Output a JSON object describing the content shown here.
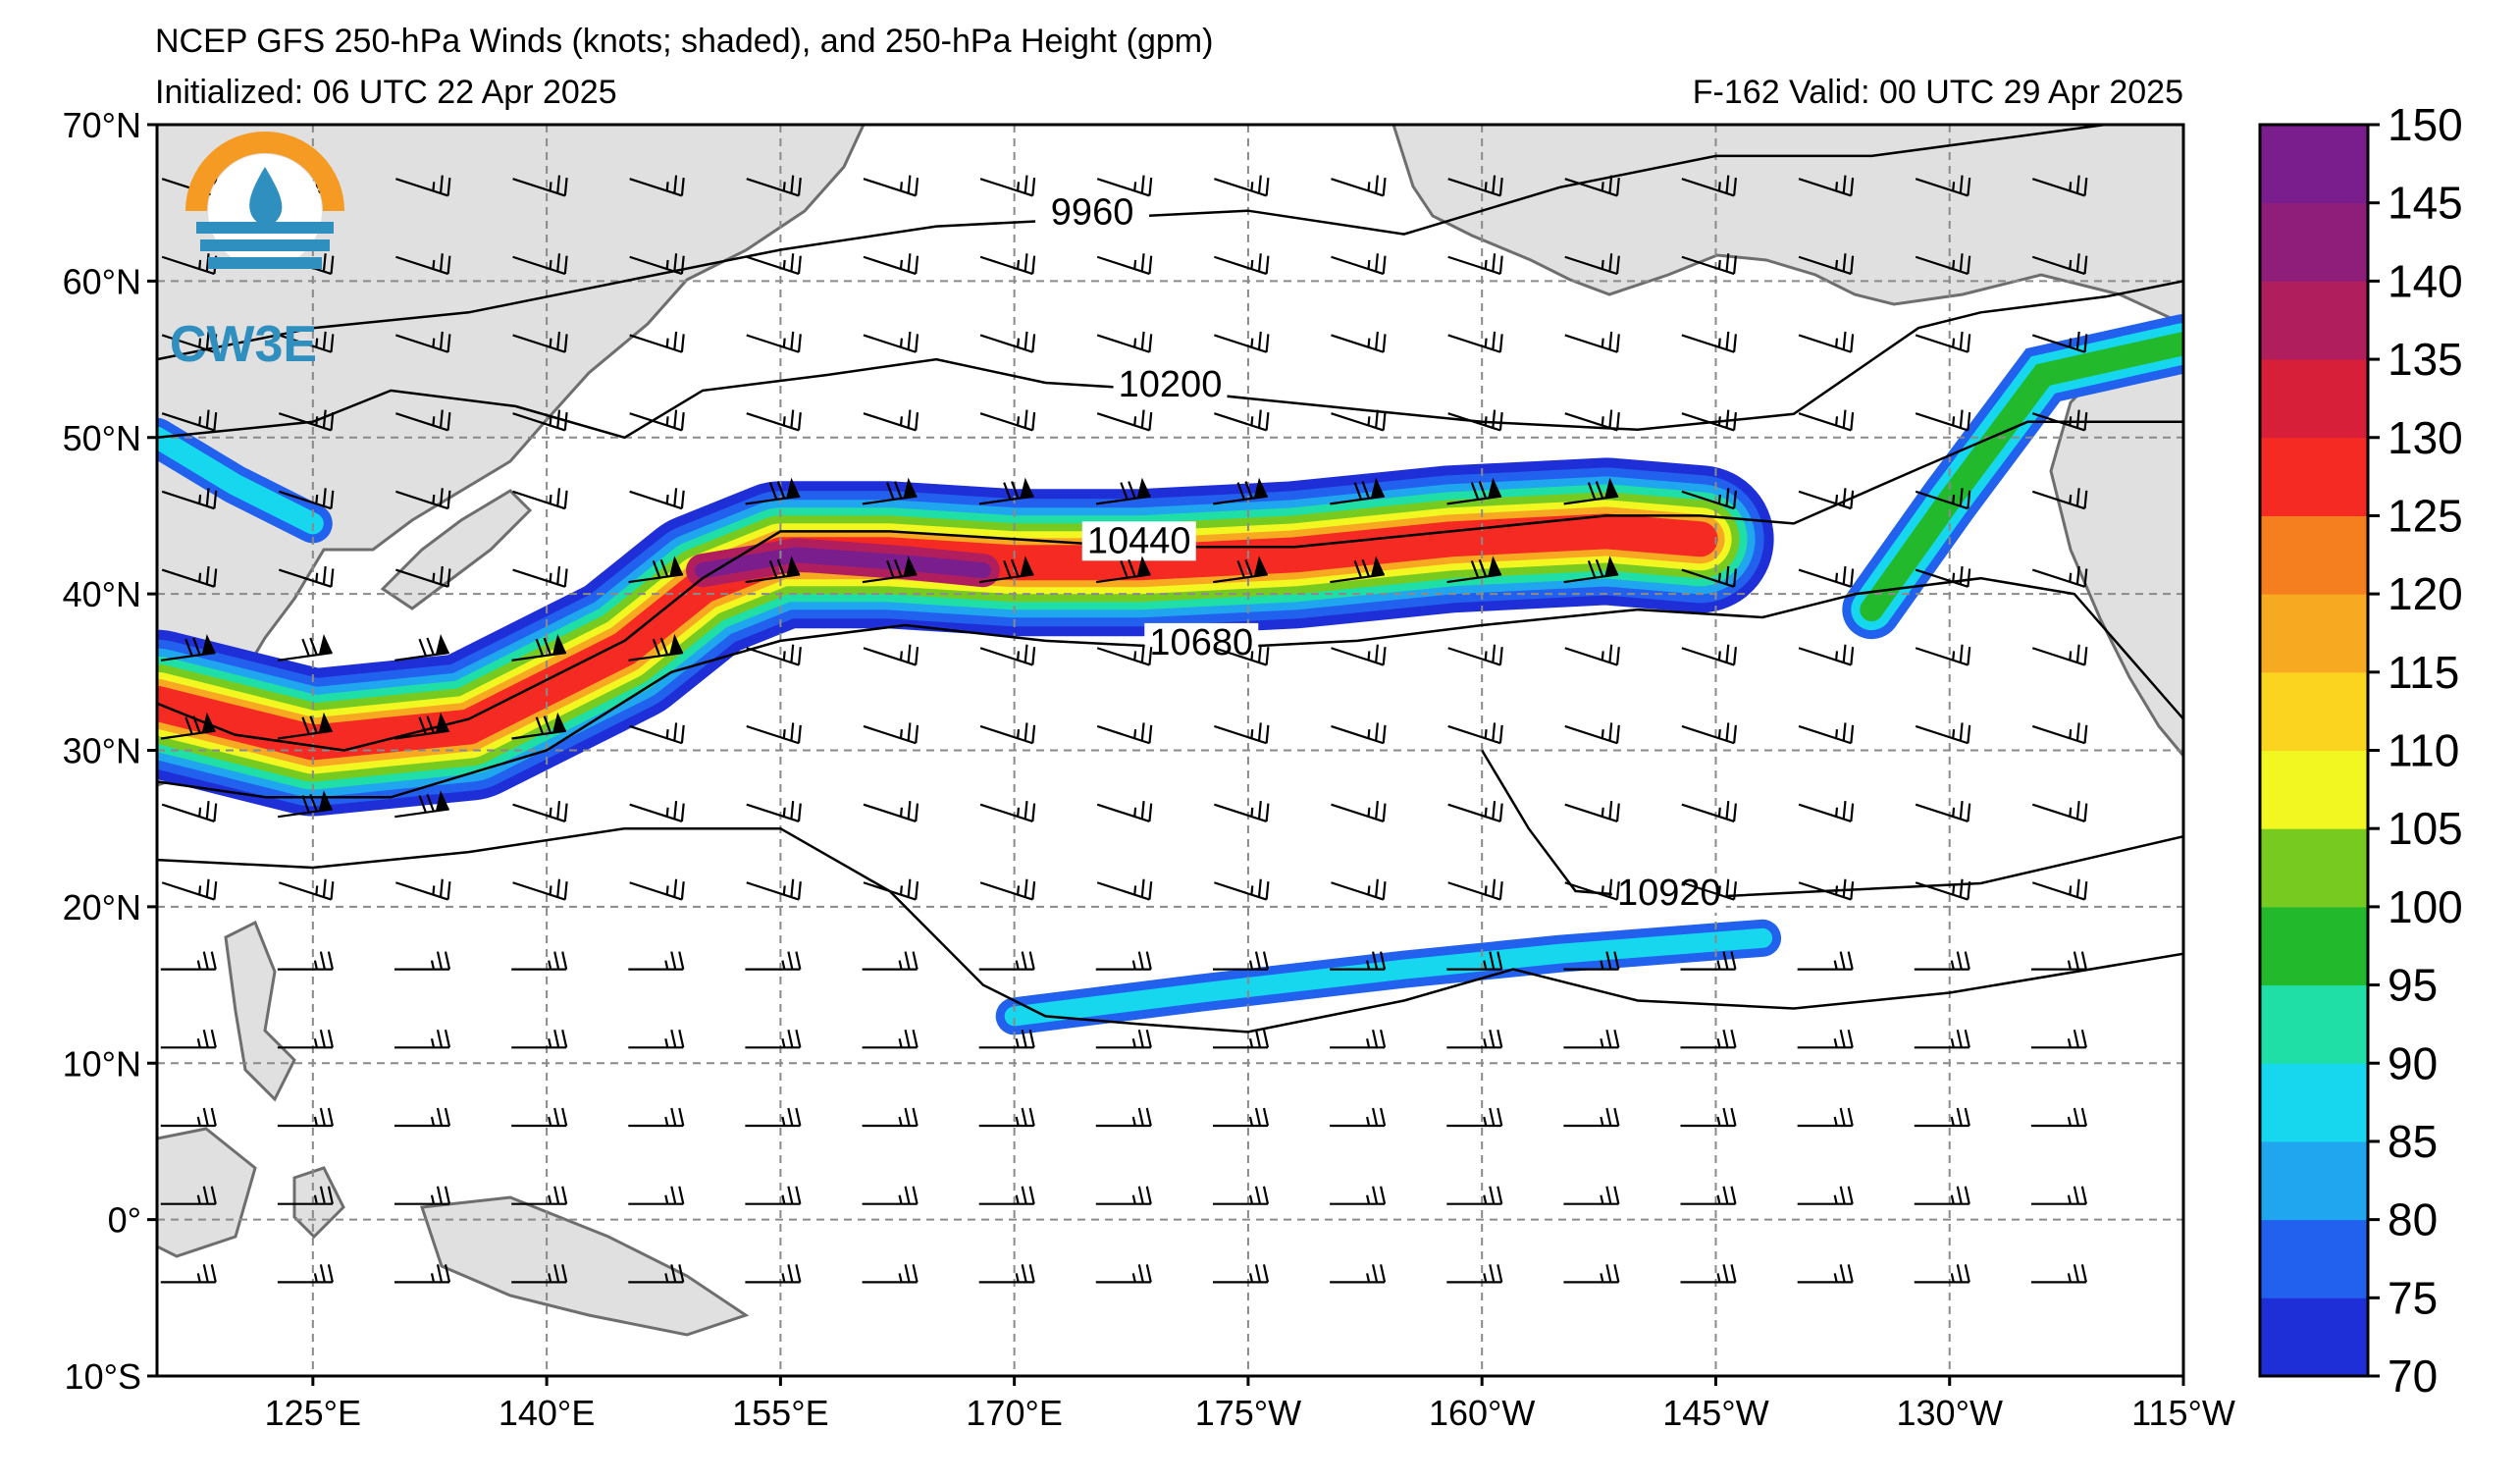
{
  "header": {
    "title": "NCEP GFS 250-hPa Winds (knots; shaded), and 250-hPa Height (gpm)",
    "initialized": "Initialized: 06 UTC 22 Apr 2025",
    "valid": "F-162  Valid: 00 UTC 29 Apr 2025"
  },
  "logo": {
    "text": "CW3E",
    "colors": {
      "ring": "#f59a23",
      "blue": "#2f8fbf"
    }
  },
  "map": {
    "projection": "equirectangular",
    "lon_range_east": [
      115,
      245
    ],
    "lat_range": [
      -10,
      70
    ],
    "lat_ticks": [
      {
        "lat": 70,
        "label": "70°N"
      },
      {
        "lat": 60,
        "label": "60°N"
      },
      {
        "lat": 50,
        "label": "50°N"
      },
      {
        "lat": 40,
        "label": "40°N"
      },
      {
        "lat": 30,
        "label": "30°N"
      },
      {
        "lat": 20,
        "label": "20°N"
      },
      {
        "lat": 10,
        "label": "10°N"
      },
      {
        "lat": 0,
        "label": "0°"
      },
      {
        "lat": -10,
        "label": "10°S"
      }
    ],
    "lon_ticks": [
      {
        "lon": 125,
        "label": "125°E"
      },
      {
        "lon": 140,
        "label": "140°E"
      },
      {
        "lon": 155,
        "label": "155°E"
      },
      {
        "lon": 170,
        "label": "170°E"
      },
      {
        "lon": 185,
        "label": "175°W"
      },
      {
        "lon": 200,
        "label": "160°W"
      },
      {
        "lon": 215,
        "label": "145°W"
      },
      {
        "lon": 230,
        "label": "130°W"
      },
      {
        "lon": 245,
        "label": "115°W"
      }
    ],
    "gridlines": "dashed",
    "land_color": "#e0e0e0",
    "height_contours": [
      {
        "label": "9960",
        "points": [
          [
            115,
            55
          ],
          [
            125,
            57
          ],
          [
            135,
            58
          ],
          [
            145,
            60
          ],
          [
            155,
            62
          ],
          [
            165,
            63.5
          ],
          [
            175,
            64
          ],
          [
            185,
            64.5
          ],
          [
            195,
            63
          ],
          [
            205,
            66
          ],
          [
            215,
            68
          ],
          [
            225,
            68
          ],
          [
            240,
            70
          ]
        ]
      },
      {
        "label": "10200",
        "points": [
          [
            115,
            50
          ],
          [
            125,
            51
          ],
          [
            130,
            53
          ],
          [
            138,
            52
          ],
          [
            145,
            50
          ],
          [
            150,
            53
          ],
          [
            158,
            54
          ],
          [
            165,
            55
          ],
          [
            172,
            53.5
          ],
          [
            180,
            53
          ],
          [
            190,
            52
          ],
          [
            200,
            51
          ],
          [
            210,
            50.5
          ],
          [
            220,
            51.5
          ],
          [
            228,
            57
          ],
          [
            232,
            58
          ],
          [
            240,
            59
          ],
          [
            245,
            60
          ]
        ]
      },
      {
        "label": "10440",
        "points": [
          [
            115,
            33
          ],
          [
            120,
            31
          ],
          [
            127,
            30
          ],
          [
            135,
            32
          ],
          [
            145,
            37
          ],
          [
            150,
            41
          ],
          [
            155,
            44
          ],
          [
            162,
            44
          ],
          [
            170,
            43.5
          ],
          [
            178,
            43
          ],
          [
            188,
            43
          ],
          [
            198,
            44
          ],
          [
            208,
            45
          ],
          [
            214,
            45
          ],
          [
            220,
            44.5
          ],
          [
            228,
            48
          ],
          [
            235,
            51
          ],
          [
            245,
            51
          ]
        ]
      },
      {
        "label": "10680",
        "points": [
          [
            115,
            28
          ],
          [
            122,
            27
          ],
          [
            130,
            27
          ],
          [
            140,
            30
          ],
          [
            148,
            35
          ],
          [
            155,
            37
          ],
          [
            163,
            38
          ],
          [
            172,
            37
          ],
          [
            182,
            36.5
          ],
          [
            192,
            37
          ],
          [
            200,
            38
          ],
          [
            210,
            39
          ],
          [
            218,
            38.5
          ],
          [
            224,
            40
          ],
          [
            232,
            41
          ],
          [
            238,
            40
          ],
          [
            245,
            32
          ]
        ]
      },
      {
        "label": "",
        "points": [
          [
            115,
            23
          ],
          [
            125,
            22.5
          ],
          [
            135,
            23.5
          ],
          [
            145,
            25
          ],
          [
            155,
            25
          ],
          [
            162,
            21
          ],
          [
            168,
            15
          ],
          [
            172,
            13
          ],
          [
            178,
            12.5
          ],
          [
            185,
            12
          ],
          [
            195,
            14
          ],
          [
            202,
            16
          ],
          [
            210,
            14
          ],
          [
            220,
            13.5
          ],
          [
            230,
            14.5
          ],
          [
            245,
            17
          ]
        ]
      },
      {
        "label": "10920",
        "points": [
          [
            200,
            30
          ],
          [
            203,
            25
          ],
          [
            206,
            21
          ],
          [
            212,
            20.5
          ],
          [
            222,
            21
          ],
          [
            232,
            21.5
          ],
          [
            245,
            24.5
          ]
        ]
      }
    ]
  },
  "colorbar": {
    "ticks": [
      "70",
      "75",
      "80",
      "85",
      "90",
      "95",
      "100",
      "105",
      "110",
      "115",
      "120",
      "125",
      "130",
      "135",
      "140",
      "145",
      "150"
    ],
    "colors": [
      "#1f2fd8",
      "#2260ee",
      "#1fa6ef",
      "#17d7ee",
      "#20dfa6",
      "#22ba2c",
      "#76ca20",
      "#f2f722",
      "#fad41f",
      "#f8a922",
      "#f57e1f",
      "#f52a22",
      "#d81f3a",
      "#b01e5d",
      "#8f1e7a",
      "#7a1e8e"
    ]
  }
}
